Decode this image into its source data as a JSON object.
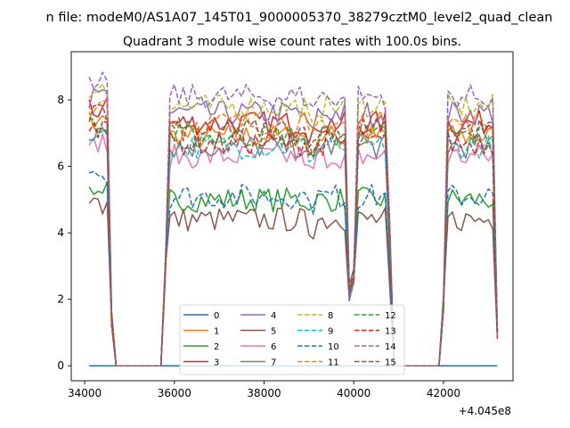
{
  "chart_data": {
    "type": "line",
    "suptitle": "n file: modeM0/AS1A07_145T01_9000005370_38279cztM0_level2_quad_clean",
    "title": "Quadrant 3 module wise count rates with 100.0s bins.",
    "xlabel": "",
    "ylabel": "",
    "x_offset_label": "+4.045e8",
    "xlim": [
      33700,
      43550
    ],
    "ylim": [
      -0.45,
      9.45
    ],
    "x_ticks": [
      {
        "value": 34000,
        "label": "34000"
      },
      {
        "value": 36000,
        "label": "36000"
      },
      {
        "value": 38000,
        "label": "38000"
      },
      {
        "value": 40000,
        "label": "40000"
      },
      {
        "value": 42000,
        "label": "42000"
      }
    ],
    "y_ticks": [
      {
        "value": 0,
        "label": "0"
      },
      {
        "value": 2,
        "label": "2"
      },
      {
        "value": 4,
        "label": "4"
      },
      {
        "value": 6,
        "label": "6"
      },
      {
        "value": 8,
        "label": "8"
      }
    ],
    "grid": false,
    "legend_placement": "lower-center",
    "bin_width": 100,
    "segments": [
      {
        "start": 34100,
        "end": 34600
      },
      {
        "start": 35800,
        "end": 39900
      },
      {
        "start": 40000,
        "end": 40800
      },
      {
        "start": 42000,
        "end": 43200
      }
    ],
    "series": [
      {
        "name": "0",
        "color": "#1f77b4",
        "dash": "solid",
        "level": 0.0
      },
      {
        "name": "1",
        "color": "#ff7f0e",
        "dash": "solid",
        "level": 6.9
      },
      {
        "name": "2",
        "color": "#2ca02c",
        "dash": "solid",
        "level": 5.0
      },
      {
        "name": "3",
        "color": "#d62728",
        "dash": "solid",
        "level": 7.3
      },
      {
        "name": "4",
        "color": "#9467bd",
        "dash": "solid",
        "level": 7.6
      },
      {
        "name": "5",
        "color": "#8c564b",
        "dash": "solid",
        "level": 4.4
      },
      {
        "name": "6",
        "color": "#e377c2",
        "dash": "solid",
        "level": 6.3
      },
      {
        "name": "7",
        "color": "#7f7f7f",
        "dash": "solid",
        "level": 6.6
      },
      {
        "name": "8",
        "color": "#bcbd22",
        "dash": "dashed",
        "level": 7.8
      },
      {
        "name": "9",
        "color": "#17becf",
        "dash": "dashed",
        "level": 6.6
      },
      {
        "name": "10",
        "color": "#1f77b4",
        "dash": "dashed",
        "level": 5.1
      },
      {
        "name": "11",
        "color": "#ff7f0e",
        "dash": "dashed",
        "level": 7.3
      },
      {
        "name": "12",
        "color": "#2ca02c",
        "dash": "dashed",
        "level": 6.9
      },
      {
        "name": "13",
        "color": "#d62728",
        "dash": "dashed",
        "level": 6.7
      },
      {
        "name": "14",
        "color": "#9467bd",
        "dash": "dashed",
        "level": 8.1
      },
      {
        "name": "15",
        "color": "#8c564b",
        "dash": "dashed",
        "level": 7.1
      }
    ]
  }
}
